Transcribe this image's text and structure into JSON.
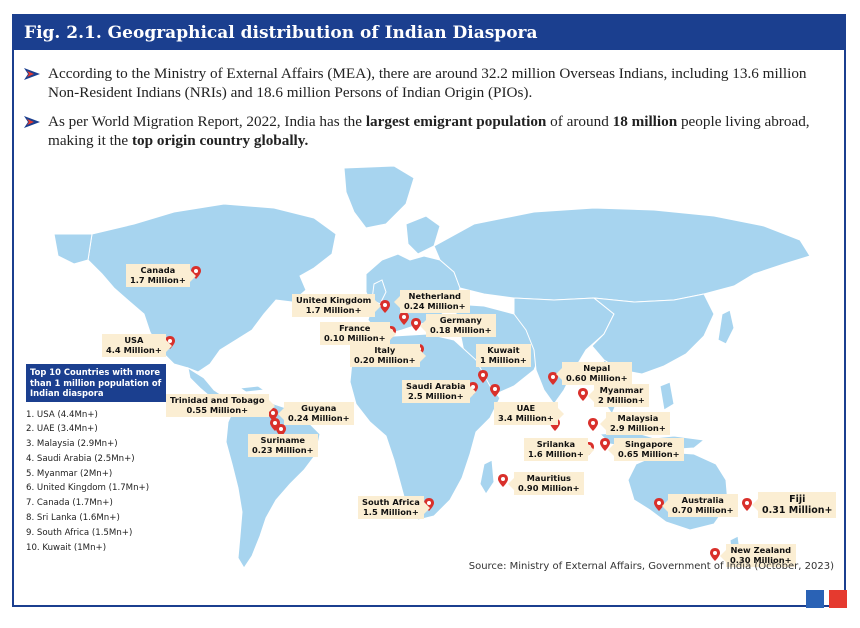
{
  "title": "Fig. 2.1.  Geographical distribution of Indian Diaspora",
  "bullets": {
    "b1": "According to the Ministry of External Affairs (MEA), there are around 32.2 million Overseas Indians, including 13.6 million Non-Resident Indians (NRIs) and 18.6 million Persons of Indian Origin (PIOs).",
    "b2_pre": "As per World Migration Report, 2022, India has the ",
    "b2_bold1": "largest emigrant population",
    "b2_mid": " of around ",
    "b2_bold2": "18 million",
    "b2_post": " people living abroad, making it the ",
    "b2_bold3": "top origin country globally."
  },
  "map_labels": {
    "canada": {
      "name": "Canada",
      "value": "1.7 Million+"
    },
    "usa": {
      "name": "USA",
      "value": "4.4 Million+"
    },
    "uk": {
      "name": "United Kingdom",
      "value": "1.7 Million+"
    },
    "netherland": {
      "name": "Netherland",
      "value": "0.24 Million+"
    },
    "germany": {
      "name": "Germany",
      "value": "0.18 Million+"
    },
    "france": {
      "name": "France",
      "value": "0.10 Million+"
    },
    "italy": {
      "name": "Italy",
      "value": "0.20 Million+"
    },
    "kuwait": {
      "name": "Kuwait",
      "value": "1 Million+"
    },
    "nepal": {
      "name": "Nepal",
      "value": "0.60 Million+"
    },
    "saudi": {
      "name": "Saudi Arabia",
      "value": "2.5 Million+"
    },
    "myanmar": {
      "name": "Myanmar",
      "value": "2 Million+"
    },
    "uae": {
      "name": "UAE",
      "value": "3.4 Million+"
    },
    "malaysia": {
      "name": "Malaysia",
      "value": "2.9 Million+"
    },
    "srilanka": {
      "name": "Srilanka",
      "value": "1.6 Million+"
    },
    "singapore": {
      "name": "Singapore",
      "value": "0.65 Million+"
    },
    "trinidad": {
      "name": "Trinidad and Tobago",
      "value": "0.55 Million+"
    },
    "guyana": {
      "name": "Guyana",
      "value": "0.24 Million+"
    },
    "suriname": {
      "name": "Suriname",
      "value": "0.23 Million+"
    },
    "mauritius": {
      "name": "Mauritius",
      "value": "0.90 Million+"
    },
    "southafrica": {
      "name": "South Africa",
      "value": "1.5 Million+"
    },
    "australia": {
      "name": "Australia",
      "value": "0.70 Million+"
    },
    "fiji": {
      "name": "Fiji",
      "value": "0.31 Million+"
    },
    "newzealand": {
      "name": "New Zealand",
      "value": "0.30 Million+"
    }
  },
  "legend": {
    "title": "Top 10 Countries with more than 1 million population of Indian diaspora",
    "items": [
      "1. USA (4.4Mn+)",
      "2. UAE (3.4Mn+)",
      "3. Malaysia (2.9Mn+)",
      "4. Saudi Arabia (2.5Mn+)",
      "5. Myanmar (2Mn+)",
      "6. United Kingdom (1.7Mn+)",
      "7. Canada (1.7Mn+)",
      "8. Sri Lanka (1.6Mn+)",
      "9. South Africa (1.5Mn+)",
      "10. Kuwait (1Mn+)"
    ]
  },
  "source": "Source: Ministry of External Affairs, Government of India (October, 2023)",
  "colors": {
    "brand_blue": "#1b3f8f",
    "land": "#a7d4ef",
    "label_bg": "#fbeed3",
    "pin": "#d9302b",
    "accent_red": "#e53a2f"
  }
}
